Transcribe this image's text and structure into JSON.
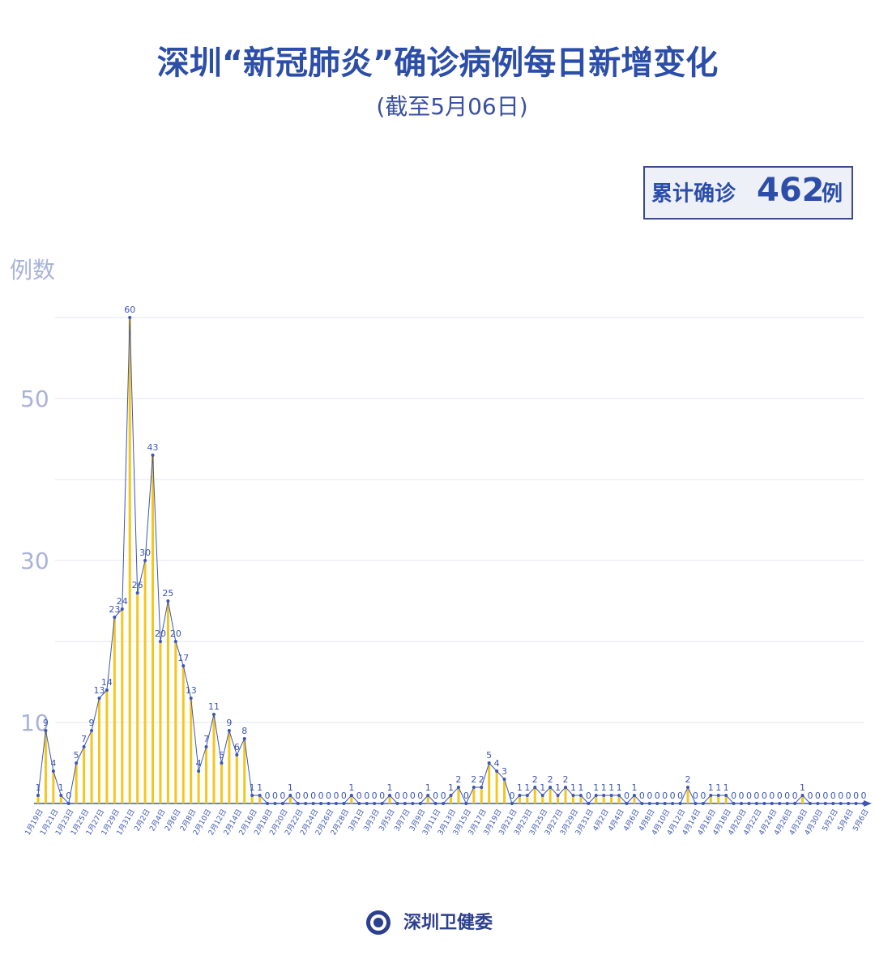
{
  "chart_data": {
    "type": "line",
    "title": "深圳“新冠肺炎”确诊病例每日新增变化",
    "subtitle": "(截至5月06日)",
    "total_box": {
      "label": "累计确诊",
      "value": 462,
      "unit": "例"
    },
    "y_label": "例数",
    "source": "深圳卫健委",
    "color": "#3c56b5",
    "bar_color": "#f5c61c",
    "grid": true,
    "ylim": [
      0,
      60
    ],
    "yticks": [
      10,
      30,
      50
    ],
    "minor_yticks": [
      20,
      40,
      60
    ],
    "categories": [
      "1月19日",
      null,
      "1月21日",
      null,
      "1月23日",
      null,
      "1月25日",
      null,
      "1月27日",
      null,
      "1月29日",
      null,
      "1月31日",
      null,
      "2月2日",
      null,
      "2月4日",
      null,
      "2月6日",
      null,
      "2月8日",
      null,
      "2月10日",
      null,
      "2月12日",
      null,
      "2月14日",
      null,
      "2月16日",
      null,
      "2月18日",
      null,
      "2月20日",
      null,
      "2月22日",
      null,
      "2月24日",
      null,
      "2月26日",
      null,
      "2月28日",
      null,
      "3月1日",
      null,
      "3月3日",
      null,
      "3月5日",
      null,
      "3月7日",
      null,
      "3月9日",
      null,
      "3月11日",
      null,
      "3月13日",
      null,
      "3月15日",
      null,
      "3月17日",
      null,
      "3月19日",
      null,
      "3月21日",
      null,
      "3月23日",
      null,
      "3月25日",
      null,
      "3月27日",
      null,
      "3月29日",
      null,
      "3月31日",
      null,
      "4月2日",
      null,
      "4月4日",
      null,
      "4月6日",
      null,
      "4月8日",
      null,
      "4月10日",
      null,
      "4月12日",
      null,
      "4月14日",
      null,
      "4月16日",
      null,
      "4月18日",
      null,
      "4月20日",
      null,
      "4月22日",
      null,
      "4月24日",
      null,
      "4月26日",
      null,
      "4月28日",
      null,
      "4月30日",
      null,
      "5月2日",
      null,
      "5月4日",
      null,
      "5月6日"
    ],
    "values": [
      1,
      9,
      4,
      1,
      0,
      5,
      7,
      9,
      13,
      14,
      23,
      24,
      60,
      26,
      30,
      43,
      20,
      25,
      20,
      17,
      13,
      4,
      7,
      11,
      5,
      9,
      6,
      8,
      1,
      1,
      0,
      0,
      0,
      1,
      0,
      0,
      0,
      0,
      0,
      0,
      0,
      1,
      0,
      0,
      0,
      0,
      1,
      0,
      0,
      0,
      0,
      1,
      0,
      0,
      1,
      2,
      0,
      2,
      2,
      5,
      4,
      3,
      0,
      1,
      1,
      2,
      1,
      2,
      1,
      2,
      1,
      1,
      0,
      1,
      1,
      1,
      1,
      0,
      1,
      0,
      0,
      0,
      0,
      0,
      0,
      2,
      0,
      0,
      1,
      1,
      1,
      0,
      0,
      0,
      0,
      0,
      0,
      0,
      0,
      0,
      1,
      0,
      0,
      0,
      0,
      0,
      0,
      0,
      0
    ]
  }
}
